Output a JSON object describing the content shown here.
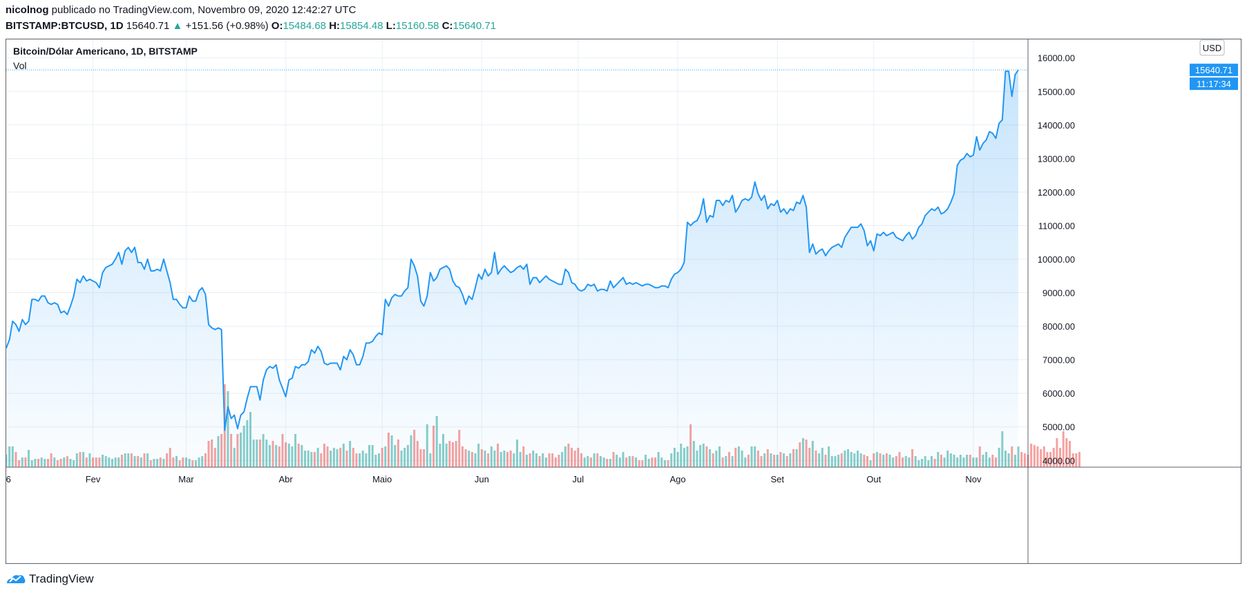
{
  "header": {
    "author": "nicolnog",
    "published_text": "publicado no TradingView.com, Novembro 09, 2020 12:42:27 UTC",
    "symbol": "BITSTAMP:BTCUSD, 1D",
    "last": "15640.71",
    "change_arrow": "▲",
    "change": "+151.56 (+0.98%)",
    "o_label": "O:",
    "o_val": "15484.68",
    "h_label": "H:",
    "h_val": "15854.48",
    "l_label": "L:",
    "l_val": "15160.58",
    "c_label": "C:",
    "c_val": "15640.71"
  },
  "legend": {
    "title": "Bitcoin/Dólar Americano, 1D, BITSTAMP",
    "volume_label": "Vol"
  },
  "currency_button": "USD",
  "price_tag": "15640.71",
  "countdown_tag": "11:17:34",
  "footer": {
    "brand": "TradingView",
    "logo_icon": "tradingview-logo-icon"
  },
  "colors": {
    "line": "#2196f3",
    "area_top": "#bbdefb",
    "vol_up": "#26a69a",
    "vol_down": "#ef5350",
    "tag_bg": "#2196f3"
  },
  "chart_data": {
    "type": "area",
    "title": "Bitcoin/Dólar Americano, 1D, BITSTAMP",
    "y_ticks": [
      "4000.00",
      "5000.00",
      "6000.00",
      "7000.00",
      "8000.00",
      "9000.00",
      "10000.00",
      "11000.00",
      "12000.00",
      "13000.00",
      "14000.00",
      "15000.00",
      "16000.00"
    ],
    "x_ticks": [
      "6",
      "Fev",
      "Mar",
      "Abr",
      "Maio",
      "Jun",
      "Jul",
      "Ago",
      "Set",
      "Out",
      "Nov"
    ],
    "x_tick_dates": [
      "2020-01-06",
      "2020-02-01",
      "2020-03-01",
      "2020-04-01",
      "2020-05-01",
      "2020-06-01",
      "2020-07-01",
      "2020-08-01",
      "2020-09-01",
      "2020-10-01",
      "2020-11-01"
    ],
    "ylim": [
      3800,
      16550
    ],
    "x_range": [
      "2020-01-05",
      "2020-11-18"
    ],
    "grid": true,
    "series": [
      {
        "kind": "price",
        "start_date": "2020-01-05",
        "values": [
          7350,
          7600,
          8150,
          8050,
          7850,
          8200,
          8050,
          8150,
          8800,
          8800,
          8750,
          8900,
          8900,
          8700,
          8650,
          8700,
          8650,
          8400,
          8450,
          8350,
          8600,
          8900,
          9400,
          9300,
          9500,
          9350,
          9400,
          9350,
          9300,
          9150,
          9600,
          9750,
          9800,
          9850,
          10000,
          10200,
          9850,
          10250,
          10350,
          10200,
          10350,
          9900,
          9900,
          9700,
          10000,
          9650,
          9650,
          9700,
          9650,
          10000,
          9650,
          9300,
          8800,
          8800,
          8650,
          8550,
          8550,
          8900,
          8750,
          8750,
          9050,
          9150,
          8950,
          8050,
          7950,
          7900,
          7950,
          7900,
          4900,
          5600,
          5250,
          5350,
          4950,
          5350,
          5450,
          5850,
          6200,
          6200,
          6200,
          5800,
          6400,
          6700,
          6800,
          6750,
          6850,
          6400,
          6150,
          5900,
          6400,
          6450,
          6800,
          6750,
          6850,
          6850,
          6950,
          7300,
          7200,
          7400,
          7250,
          6900,
          6850,
          6900,
          6900,
          6900,
          6700,
          7100,
          7000,
          7300,
          7150,
          6850,
          6850,
          7100,
          7500,
          7500,
          7550,
          7700,
          7800,
          7750,
          8800,
          8600,
          8850,
          8950,
          8900,
          8900,
          9050,
          9150,
          10000,
          9800,
          9500,
          8750,
          8600,
          8900,
          9600,
          9350,
          9450,
          9700,
          9750,
          9800,
          9700,
          9350,
          9200,
          9150,
          8950,
          8650,
          8900,
          8800,
          9150,
          9550,
          9400,
          9700,
          9500,
          9600,
          10200,
          9550,
          9700,
          9800,
          9700,
          9600,
          9650,
          9750,
          9800,
          9700,
          9850,
          9250,
          9450,
          9450,
          9300,
          9400,
          9500,
          9400,
          9350,
          9300,
          9250,
          9250,
          9700,
          9600,
          9300,
          9250,
          9100,
          9050,
          9100,
          9250,
          9200,
          9250,
          9050,
          9100,
          9100,
          9050,
          9350,
          9150,
          9250,
          9350,
          9450,
          9250,
          9300,
          9250,
          9300,
          9250,
          9200,
          9250,
          9250,
          9200,
          9150,
          9150,
          9200,
          9200,
          9150,
          9400,
          9550,
          9600,
          9700,
          9900,
          11100,
          11000,
          11100,
          11150,
          11350,
          11800,
          11100,
          11300,
          11250,
          11750,
          11750,
          11600,
          11750,
          11700,
          11900,
          11400,
          11550,
          11750,
          11800,
          11750,
          11850,
          12300,
          11950,
          11750,
          11900,
          11500,
          11650,
          11600,
          11750,
          11400,
          11500,
          11350,
          11500,
          11450,
          11700,
          11650,
          11900,
          11550,
          10200,
          10450,
          10150,
          10250,
          10300,
          10100,
          10250,
          10350,
          10400,
          10450,
          10350,
          10650,
          10800,
          10950,
          10950,
          10950,
          11050,
          10850,
          10400,
          10550,
          10250,
          10750,
          10700,
          10800,
          10700,
          10750,
          10800,
          10650,
          10600,
          10550,
          10700,
          10800,
          10600,
          10700,
          10950,
          11050,
          11300,
          11400,
          11500,
          11450,
          11550,
          11350,
          11400,
          11500,
          11700,
          11950,
          12800,
          12950,
          13000,
          13150,
          13050,
          13100,
          13650,
          13250,
          13450,
          13550,
          13800,
          13750,
          13600,
          14050,
          14150,
          15600,
          15600,
          14850,
          15500,
          15640
        ]
      },
      {
        "kind": "volume",
        "start_date": "2020-01-05",
        "values": [
          18,
          30,
          30,
          22,
          10,
          14,
          14,
          25,
          10,
          12,
          12,
          14,
          12,
          12,
          20,
          14,
          10,
          12,
          14,
          16,
          12,
          10,
          20,
          22,
          22,
          14,
          20,
          14,
          14,
          14,
          18,
          16,
          14,
          12,
          14,
          14,
          18,
          20,
          20,
          20,
          16,
          16,
          14,
          20,
          20,
          10,
          12,
          12,
          14,
          12,
          20,
          28,
          14,
          16,
          10,
          14,
          14,
          12,
          10,
          10,
          14,
          16,
          20,
          38,
          40,
          28,
          45,
          48,
          120,
          110,
          48,
          28,
          48,
          50,
          60,
          68,
          80,
          40,
          40,
          40,
          48,
          40,
          32,
          38,
          32,
          30,
          48,
          36,
          34,
          30,
          48,
          34,
          32,
          24,
          24,
          22,
          22,
          28,
          20,
          34,
          30,
          24,
          28,
          26,
          28,
          34,
          24,
          38,
          28,
          20,
          20,
          24,
          20,
          32,
          32,
          18,
          20,
          28,
          30,
          50,
          46,
          32,
          40,
          24,
          28,
          32,
          46,
          54,
          38,
          26,
          26,
          62,
          20,
          60,
          74,
          34,
          48,
          34,
          38,
          36,
          38,
          54,
          30,
          26,
          24,
          22,
          20,
          34,
          26,
          24,
          20,
          30,
          24,
          34,
          22,
          24,
          22,
          24,
          20,
          40,
          22,
          30,
          18,
          20,
          24,
          20,
          16,
          20,
          14,
          20,
          20,
          14,
          18,
          22,
          30,
          34,
          28,
          24,
          28,
          20,
          14,
          16,
          14,
          20,
          20,
          16,
          14,
          12,
          12,
          22,
          18,
          14,
          22,
          14,
          16,
          16,
          14,
          10,
          10,
          18,
          12,
          14,
          14,
          22,
          14,
          10,
          10,
          20,
          28,
          22,
          34,
          28,
          30,
          62,
          38,
          24,
          32,
          34,
          30,
          26,
          20,
          24,
          30,
          14,
          16,
          22,
          16,
          28,
          30,
          24,
          14,
          18,
          30,
          30,
          24,
          16,
          20,
          26,
          20,
          18,
          18,
          22,
          20,
          16,
          20,
          26,
          26,
          36,
          42,
          40,
          28,
          38,
          24,
          20,
          28,
          18,
          30,
          16,
          16,
          18,
          20,
          24,
          26,
          22,
          20,
          24,
          20,
          18,
          16,
          10,
          20,
          22,
          20,
          18,
          20,
          18,
          14,
          16,
          22,
          14,
          16,
          14,
          26,
          16,
          10,
          12,
          16,
          10,
          16,
          12,
          22,
          18,
          14,
          24,
          20,
          18,
          14,
          18,
          14,
          18,
          18,
          14,
          14,
          30,
          18,
          22,
          14,
          18,
          14,
          28,
          52,
          24,
          20,
          30,
          18,
          30,
          22,
          20,
          18,
          34,
          32,
          30,
          26,
          30,
          22,
          22,
          28,
          42,
          28,
          52,
          42,
          38,
          20,
          20,
          22
        ]
      }
    ]
  }
}
